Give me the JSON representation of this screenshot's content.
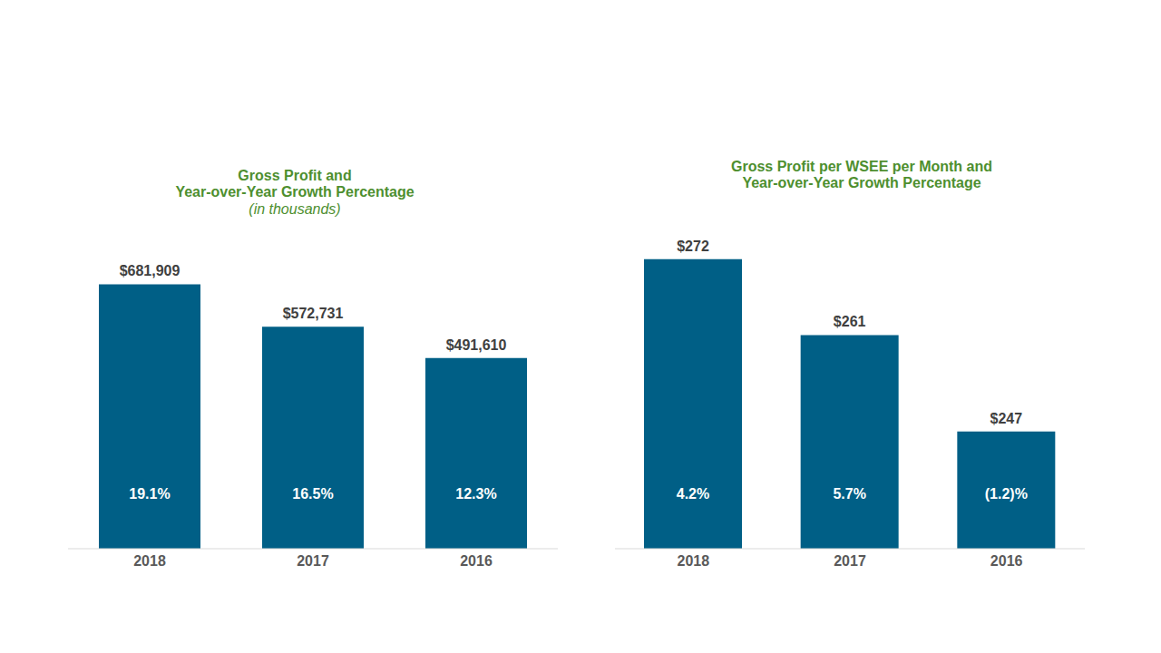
{
  "chart_data": [
    {
      "type": "bar",
      "title": "Gross Profit and\nYear-over-Year Growth Percentage",
      "subtitle": "(in thousands)",
      "categories": [
        "2018",
        "2017",
        "2016"
      ],
      "values": [
        681909,
        572731,
        491610
      ],
      "value_labels": [
        "$681,909",
        "$572,731",
        "$491,610"
      ],
      "growth": [
        19.1,
        16.5,
        12.3
      ],
      "growth_labels": [
        "19.1%",
        "16.5%",
        "12.3%"
      ],
      "color": "#005f86",
      "ylim": [
        0,
        800000
      ],
      "yticks": [
        0,
        800000
      ],
      "tick_labels": "x",
      "grid": false,
      "data_labels": true
    },
    {
      "type": "bar",
      "title": "Gross Profit per WSEE per Month and\nYear-over-Year Growth Percentage",
      "categories": [
        "2018",
        "2017",
        "2016"
      ],
      "values": [
        272,
        261,
        247
      ],
      "value_labels": [
        "$272",
        "$261",
        "$247"
      ],
      "growth": [
        4.2,
        5.7,
        -1.2
      ],
      "growth_labels": [
        "4.2%",
        "5.7%",
        "(1.2)%"
      ],
      "color": "#005f86",
      "ylim": [
        230,
        275
      ],
      "yticks": [
        230,
        275
      ],
      "tick_labels": "x",
      "grid": false,
      "data_labels": true
    }
  ]
}
